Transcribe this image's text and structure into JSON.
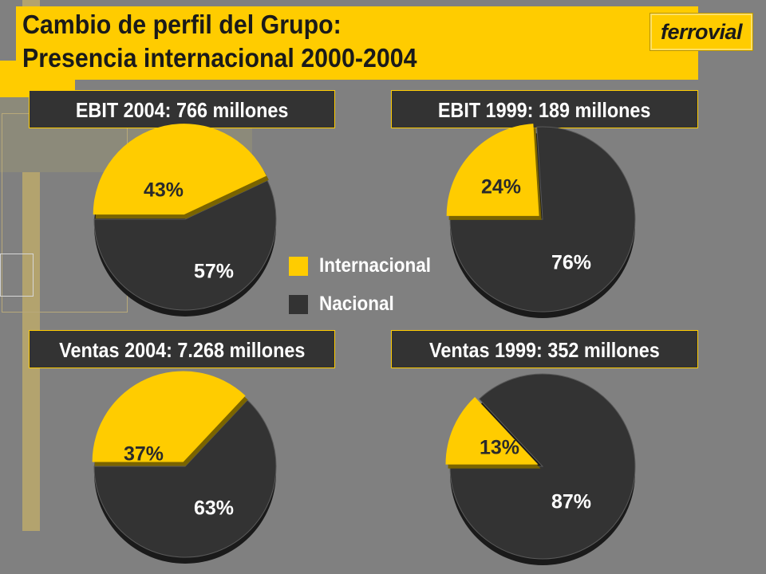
{
  "title": {
    "line1": "Cambio de perfil del Grupo:",
    "line2": "Presencia internacional 2000-2004"
  },
  "logo": {
    "text": "ferrovial"
  },
  "colors": {
    "internacional": "#ffcc00",
    "nacional": "#333333",
    "background": "#808080",
    "label_dark": "#2a2a2a",
    "label_light": "#ffffff"
  },
  "legend": [
    {
      "label": "Internacional",
      "color": "#ffcc00"
    },
    {
      "label": "Nacional",
      "color": "#333333"
    }
  ],
  "chart_data": [
    {
      "type": "pie",
      "title": "EBIT 2004: 766 millones",
      "slices": [
        {
          "label": "43%",
          "value": 43,
          "series": "Internacional"
        },
        {
          "label": "57%",
          "value": 57,
          "series": "Nacional"
        }
      ]
    },
    {
      "type": "pie",
      "title": "EBIT 1999: 189 millones",
      "slices": [
        {
          "label": "24%",
          "value": 24,
          "series": "Internacional"
        },
        {
          "label": "76%",
          "value": 76,
          "series": "Nacional"
        }
      ]
    },
    {
      "type": "pie",
      "title": "Ventas 2004: 7.268 millones",
      "slices": [
        {
          "label": "37%",
          "value": 37,
          "series": "Internacional"
        },
        {
          "label": "63%",
          "value": 63,
          "series": "Nacional"
        }
      ]
    },
    {
      "type": "pie",
      "title": "Ventas 1999: 352 millones",
      "slices": [
        {
          "label": "13%",
          "value": 13,
          "series": "Internacional"
        },
        {
          "label": "87%",
          "value": 87,
          "series": "Nacional"
        }
      ]
    }
  ]
}
